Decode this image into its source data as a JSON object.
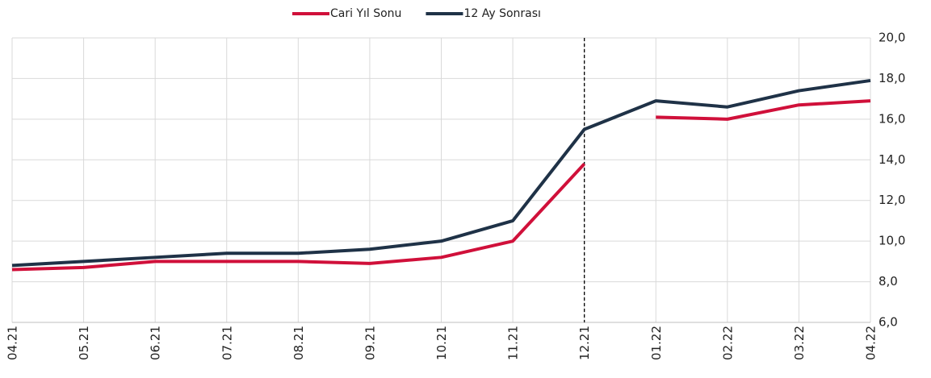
{
  "chart_data": {
    "type": "line",
    "categories": [
      "04.21",
      "05.21",
      "06.21",
      "07.21",
      "08.21",
      "09.21",
      "10.21",
      "11.21",
      "12.21",
      "01.22",
      "02.22",
      "03.22",
      "04.22"
    ],
    "series": [
      {
        "name": "Cari Yıl Sonu",
        "color": "#d0103a",
        "break_at_divider": true,
        "values": [
          8.6,
          8.7,
          9.0,
          9.0,
          9.0,
          8.9,
          9.2,
          10.0,
          13.8,
          16.1,
          16.0,
          16.7,
          16.9
        ]
      },
      {
        "name": "12 Ay Sonrası",
        "color": "#1f3247",
        "values": [
          8.8,
          9.0,
          9.2,
          9.4,
          9.4,
          9.6,
          10.0,
          11.0,
          15.5,
          16.9,
          16.6,
          17.4,
          17.9
        ]
      }
    ],
    "ylim": [
      6,
      20
    ],
    "yticks": [
      {
        "value": 6,
        "label": "6,0"
      },
      {
        "value": 8,
        "label": "8,0"
      },
      {
        "value": 10,
        "label": "10,0"
      },
      {
        "value": 12,
        "label": "12,0"
      },
      {
        "value": 14,
        "label": "14,0"
      },
      {
        "value": 16,
        "label": "16,0"
      },
      {
        "value": 18,
        "label": "18,0"
      },
      {
        "value": 20,
        "label": "20,0"
      }
    ],
    "y_axis_side": "right",
    "grid": true,
    "divider": "12.21",
    "legend": "top"
  }
}
